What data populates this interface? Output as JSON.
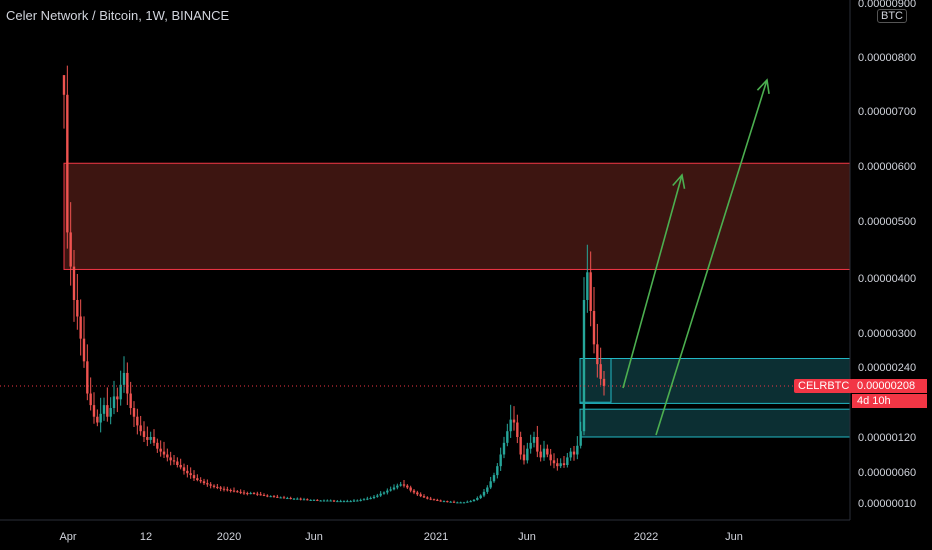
{
  "header": {
    "title": "Celer Network / Bitcoin, 1W, BINANCE",
    "currency_badge": "BTC"
  },
  "price_badge": {
    "symbol": "CELRBTC",
    "price": "0.00000208",
    "countdown": "4d 10h"
  },
  "colors": {
    "background": "#000000",
    "up": "#26a69a",
    "down": "#ef5350",
    "resistance_zone": "#3d1511",
    "resistance_border": "#f23645",
    "support_zone": "#0c2f33",
    "support_border": "#22b8c5",
    "arrow": "#4caf50",
    "last_price": "#f23645"
  },
  "chart_data": {
    "type": "candlestick",
    "title": "Celer Network / Bitcoin, 1W, BINANCE",
    "y_scale": "log",
    "y_ticks": [
      "0.00000900",
      "0.00000800",
      "0.00000700",
      "0.00000600",
      "0.00000500",
      "0.00000400",
      "0.00000300",
      "0.00000240",
      "0.00000120",
      "0.00000060",
      "0.00000010"
    ],
    "y_tick_values": [
      9e-06,
      8e-06,
      7e-06,
      6e-06,
      5e-06,
      4e-06,
      3e-06,
      2.4e-06,
      1.2e-06,
      6e-07,
      1e-07
    ],
    "x_ticks": [
      "Apr",
      "12",
      "2020",
      "Jun",
      "2021",
      "Jun",
      "2022",
      "Jun"
    ],
    "last_price": 2.08e-06,
    "zones": [
      {
        "type": "resistance",
        "low": 4.15e-06,
        "high": 6.05e-06
      },
      {
        "type": "support",
        "low": 1.78e-06,
        "high": 2.55e-06
      },
      {
        "type": "support",
        "low": 1.2e-06,
        "high": 1.68e-06
      }
    ],
    "series_close": [
      7.3,
      4.8,
      4.2,
      3.6,
      3.3,
      2.9,
      2.5,
      1.95,
      1.75,
      1.55,
      1.45,
      1.6,
      1.75,
      1.55,
      1.7,
      1.9,
      1.85,
      2.1,
      2.3,
      1.95,
      1.7,
      1.55,
      1.4,
      1.3,
      1.2,
      1.15,
      1.2,
      1.1,
      1.0,
      0.95,
      0.9,
      0.85,
      0.8,
      0.78,
      0.72,
      0.68,
      0.62,
      0.58,
      0.55,
      0.5,
      0.47,
      0.45,
      0.42,
      0.4,
      0.38,
      0.36,
      0.35,
      0.33,
      0.32,
      0.31,
      0.3,
      0.29,
      0.28,
      0.27,
      0.26,
      0.25,
      0.26,
      0.25,
      0.24,
      0.23,
      0.22,
      0.21,
      0.21,
      0.2,
      0.19,
      0.19,
      0.18,
      0.18,
      0.17,
      0.17,
      0.17,
      0.16,
      0.16,
      0.15,
      0.15,
      0.15,
      0.14,
      0.14,
      0.14,
      0.14,
      0.14,
      0.13,
      0.13,
      0.13,
      0.13,
      0.13,
      0.13,
      0.14,
      0.14,
      0.15,
      0.16,
      0.17,
      0.18,
      0.2,
      0.22,
      0.25,
      0.27,
      0.3,
      0.32,
      0.35,
      0.38,
      0.4,
      0.38,
      0.35,
      0.3,
      0.27,
      0.24,
      0.21,
      0.19,
      0.17,
      0.16,
      0.15,
      0.14,
      0.13,
      0.13,
      0.12,
      0.12,
      0.11,
      0.11,
      0.11,
      0.11,
      0.12,
      0.13,
      0.15,
      0.18,
      0.22,
      0.28,
      0.35,
      0.45,
      0.55,
      0.7,
      0.9,
      1.1,
      1.3,
      1.5,
      1.45,
      1.2,
      0.9,
      0.8,
      1.0,
      1.1,
      1.2,
      0.95,
      0.85,
      1.0,
      0.9,
      0.8,
      0.75,
      0.7,
      0.75,
      0.72,
      0.85,
      0.95,
      0.9,
      1.05,
      1.3,
      3.6,
      4.1,
      3.4,
      2.8,
      2.45,
      2.2,
      2.08
    ],
    "annotations": [
      "Up-trend arrow to the resistance zone",
      "Second up-trend arrow above the resistance zone"
    ]
  }
}
